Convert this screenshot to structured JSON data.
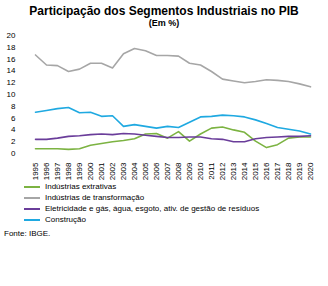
{
  "chart_data": {
    "type": "line",
    "title": "Participação dos Segmentos Industriais no PIB",
    "subtitle": "(Em %)",
    "source": "Fonte: IBGE.",
    "x": [
      1995,
      1996,
      1997,
      1998,
      1999,
      2000,
      2001,
      2002,
      2003,
      2004,
      2005,
      2006,
      2007,
      2008,
      2009,
      2010,
      2011,
      2012,
      2013,
      2014,
      2015,
      2016,
      2017,
      2018,
      2019,
      2020
    ],
    "series": [
      {
        "name": "Indústrias extrativas",
        "color": "#7cb342",
        "values": [
          0.8,
          0.8,
          0.8,
          0.7,
          0.8,
          1.4,
          1.7,
          2.0,
          2.2,
          2.5,
          3.3,
          3.4,
          2.6,
          3.7,
          2.1,
          3.3,
          4.3,
          4.5,
          4.0,
          3.6,
          2.1,
          1.0,
          1.5,
          2.6,
          2.8,
          2.8
        ]
      },
      {
        "name": "Indústrias de transformação",
        "color": "#a6a6a6",
        "values": [
          16.7,
          15.0,
          14.9,
          13.9,
          14.3,
          15.3,
          15.3,
          14.5,
          16.9,
          17.8,
          17.4,
          16.6,
          16.6,
          16.5,
          15.3,
          15.0,
          13.9,
          12.6,
          12.3,
          12.0,
          12.2,
          12.5,
          12.4,
          12.2,
          11.8,
          11.3
        ]
      },
      {
        "name": "Eletricidade e gás, água, esgoto, ativ. de gestão de resíduos",
        "color": "#6a3d9a",
        "values": [
          2.4,
          2.4,
          2.6,
          2.9,
          3.0,
          3.2,
          3.3,
          3.2,
          3.4,
          3.3,
          3.1,
          2.9,
          2.7,
          2.7,
          2.8,
          2.8,
          2.5,
          2.4,
          2.0,
          2.0,
          2.5,
          2.7,
          2.8,
          2.9,
          2.9,
          3.0
        ]
      },
      {
        "name": "Construção",
        "color": "#1fa9e1",
        "values": [
          7.0,
          7.3,
          7.6,
          7.8,
          6.9,
          7.0,
          6.3,
          6.4,
          4.6,
          4.9,
          4.6,
          4.3,
          4.6,
          4.4,
          5.3,
          6.2,
          6.3,
          6.5,
          6.4,
          6.2,
          5.7,
          5.1,
          4.4,
          4.1,
          3.8,
          3.3
        ]
      }
    ],
    "ylim": [
      0,
      20
    ],
    "yticks": [
      0,
      2,
      4,
      6,
      8,
      10,
      12,
      14,
      16,
      18,
      20
    ],
    "grid": false,
    "legend": "bottom"
  }
}
